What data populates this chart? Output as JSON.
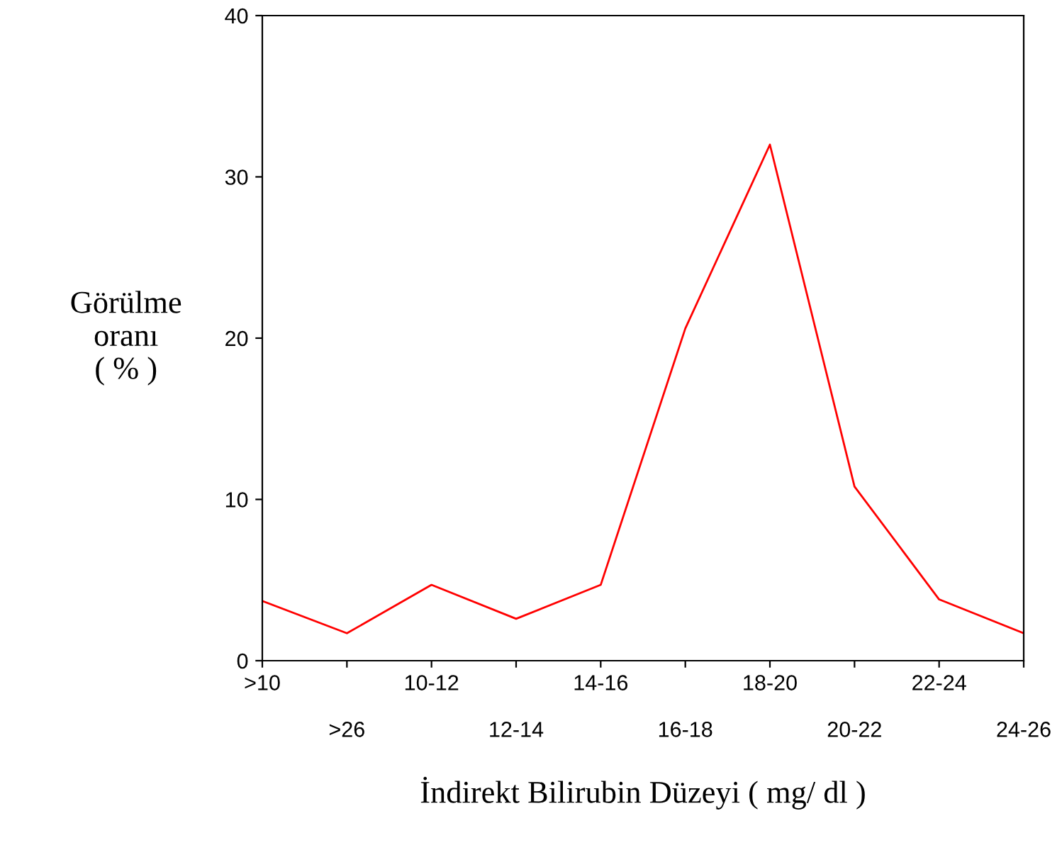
{
  "chart_data": {
    "type": "line",
    "xlabel": "İndirekt Bilirubin Düzeyi ( mg/ dl )",
    "ylabel": "Görülme\noranı\n( % )",
    "categories": [
      ">10",
      ">26",
      "10-12",
      "12-14",
      "14-16",
      "16-18",
      "18-20",
      "20-22",
      "22-24",
      "24-26"
    ],
    "series": [
      {
        "color": "#ff0000",
        "values": [
          3.7,
          1.7,
          4.7,
          2.6,
          4.7,
          20.6,
          32,
          10.8,
          3.8,
          1.7
        ]
      }
    ],
    "ylim": [
      0,
      40
    ],
    "yticks": [
      0,
      10,
      20,
      30,
      40
    ],
    "grid": false,
    "legend": false,
    "marker": "none",
    "line_style": "solid"
  }
}
